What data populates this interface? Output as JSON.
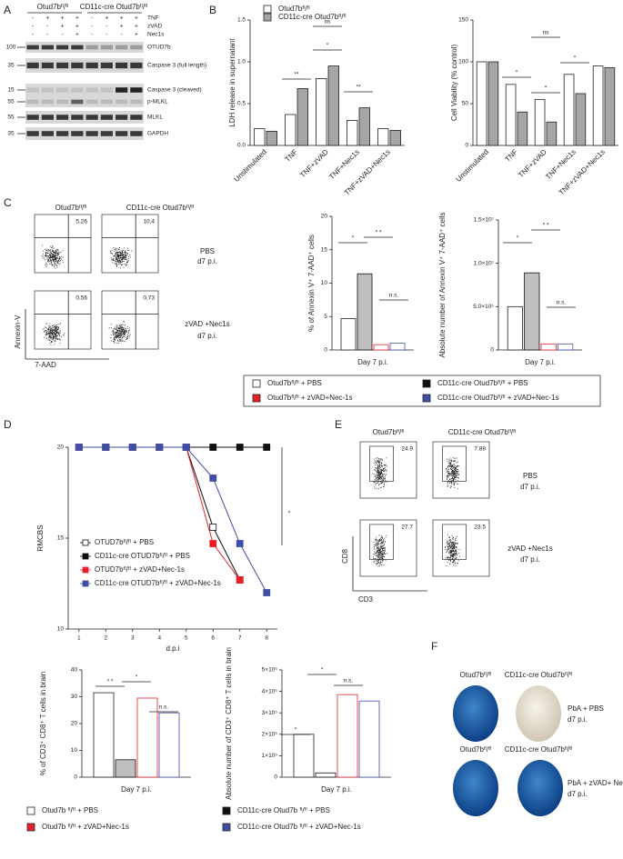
{
  "letters": [
    "A",
    "B",
    "C",
    "D",
    "E",
    "F"
  ],
  "blot": {
    "groups": [
      "Otud7bᶠˡ/ᶠˡ",
      "CD11c-cre Otud7bᶠˡ/ᶠˡ"
    ],
    "treatments": [
      {
        "name": "TNF",
        "signs": [
          "-",
          "+",
          "+",
          "+",
          "-",
          "+",
          "+",
          "+"
        ]
      },
      {
        "name": "zVAD",
        "signs": [
          "-",
          "-",
          "+",
          "+",
          "-",
          "-",
          "+",
          "+"
        ]
      },
      {
        "name": "Nec1s",
        "signs": [
          "-",
          "-",
          "-",
          "+",
          "-",
          "-",
          "-",
          "+"
        ]
      }
    ],
    "rows": [
      {
        "name": "OTUD7b",
        "mw": "100"
      },
      {
        "name": "Caspase 3 (full length)",
        "mw": "35"
      },
      {
        "name": "Caspase 3 (cleaved)",
        "mw": "15"
      },
      {
        "name": "p-MLKL",
        "mw": "55"
      },
      {
        "name": "MLKL",
        "mw": "55"
      },
      {
        "name": "GAPDH",
        "mw": "35"
      }
    ]
  },
  "flow_c": {
    "columns": [
      "Otud7bᶠˡ/ᶠˡ",
      "CD11c-cre Otud7bᶠˡ/ᶠˡ"
    ],
    "values": [
      "5,26",
      "10,4",
      "0,56",
      "0,73"
    ],
    "rows": [
      [
        "PBS",
        "d7 p.i."
      ],
      [
        "zVAD +Nec1s",
        "d7 p.i."
      ]
    ],
    "xlabel": "7-AAD",
    "ylabel": "Annexin-V"
  },
  "flow_e": {
    "columns": [
      "Otud7bᶠˡ/ᶠˡ",
      "CD11c-cre Otud7bᶠˡ/ᶠˡ"
    ],
    "values": [
      "24.9",
      "7.88",
      "27.7",
      "23.5"
    ],
    "rows": [
      [
        "PBS",
        "d7 p.i."
      ],
      [
        "zVAD +Nec1s",
        "d7 p.i."
      ]
    ],
    "xlabel": "CD3",
    "ylabel": "CD8"
  },
  "brains": {
    "columns": [
      "Otud7bᶠˡ/ᶠˡ",
      "CD11c-cre Otud7bᶠˡ/ᶠˡ",
      "Otud7bᶠˡ/ᶠˡ",
      "CD11c-cre Otud7bᶠˡ/ᶠˡ"
    ],
    "rows": [
      [
        "PbA + PBS",
        "d7 p.i."
      ],
      [
        "PbA + zVAD+ Nec1s",
        "d7 p.i."
      ]
    ]
  },
  "chart_data": [
    {
      "type": "bar",
      "ylabel": "LDH release in supernatant",
      "categories": [
        "Unstimulated",
        "TNF",
        "TNF+zVAD",
        "TNF+Nec1s",
        "TNF+zVAD+Nec1s"
      ],
      "series": [
        {
          "name": "Otud7bᶠˡ/ᶠˡ",
          "color": "#ffffff",
          "fill": "#ffffff",
          "values": [
            0.2,
            0.37,
            0.8,
            0.3,
            0.2
          ]
        },
        {
          "name": "CD11c-cre Otud7bᶠˡ/ᶠˡ",
          "color": "#a6a6a6",
          "fill": "#a6a6a6",
          "values": [
            0.17,
            0.68,
            0.95,
            0.45,
            0.18
          ]
        }
      ],
      "ylim": [
        0,
        1.5
      ],
      "yticks": [
        {
          "value": 0,
          "label": "0.0"
        },
        0.5,
        {
          "value": 1,
          "label": "1.0"
        },
        1.5
      ],
      "annotations": [
        "ns",
        "**",
        "*",
        "**"
      ]
    },
    {
      "type": "bar",
      "ylabel": "Cell Viability (% control)",
      "categories": [
        "Unstimulated",
        "TNF",
        "TNF+zVAD",
        "TNF+Nec1s",
        "TNF+zVAD+Nec1s"
      ],
      "series": [
        {
          "color": "#ffffff",
          "fill": "#ffffff",
          "values": [
            100,
            73,
            55,
            85,
            95
          ]
        },
        {
          "color": "#a6a6a6",
          "fill": "#a6a6a6",
          "values": [
            100,
            40,
            28,
            62,
            93
          ]
        }
      ],
      "ylim": [
        0,
        150
      ],
      "yticks": [
        0,
        50,
        100,
        150
      ],
      "annotations": [
        "ns",
        "*",
        "*",
        "*"
      ]
    },
    {
      "type": "bar",
      "ylabel": "% of Annexin V⁺ 7-AAD⁺ cells",
      "categories": [
        "Day 7 p.i."
      ],
      "series": [
        {
          "name": "Otud7bᶠˡ/ᶠˡ + PBS",
          "color": "#ffffff",
          "fill": "#ffffff",
          "values": [
            4.7
          ]
        },
        {
          "name": "CD11c-cre Otud7bᶠˡ/ᶠˡ + PBS",
          "color": "#111111",
          "fill": "#bfbfbf",
          "values": [
            11.4
          ]
        },
        {
          "name": "Otud7bᶠˡ/ᶠˡ + zVAD+Nec-1s",
          "color": "#e8202a",
          "fill": "#ffffff",
          "values": [
            0.8
          ]
        },
        {
          "name": "CD11c-cre Otud7bᶠˡ/ᶠˡ + zVAD+Nec-1s",
          "color": "#3f4fa8",
          "fill": "#ffffff",
          "values": [
            1.0
          ]
        }
      ],
      "ylim": [
        0,
        20
      ],
      "yticks": [
        0,
        5,
        10,
        15,
        20
      ],
      "annotations": [
        "*",
        "* *",
        "n.s."
      ]
    },
    {
      "type": "bar",
      "ylabel": "Absolute number of Annexin V⁺ 7-AAD⁺ cells",
      "categories": [
        "Day 7 p.i."
      ],
      "series": [
        {
          "color": "#ffffff",
          "fill": "#ffffff",
          "values": [
            5000000
          ]
        },
        {
          "color": "#111111",
          "fill": "#bfbfbf",
          "values": [
            8900000
          ]
        },
        {
          "color": "#e8202a",
          "fill": "#ffffff",
          "values": [
            700000
          ]
        },
        {
          "color": "#3f4fa8",
          "fill": "#ffffff",
          "values": [
            700000
          ]
        }
      ],
      "ylim": [
        0,
        15000000
      ],
      "yticks": [
        0,
        {
          "value": 5000000,
          "label": "5.0×10⁶"
        },
        {
          "value": 10000000,
          "label": "1.0×10⁷"
        },
        {
          "value": 15000000,
          "label": "1.5×10⁷"
        }
      ],
      "annotations": [
        "*",
        "* *",
        "n.s."
      ]
    },
    {
      "type": "line",
      "ylabel": "RMCBS",
      "xlabel": "d.p.i",
      "x": [
        1,
        2,
        3,
        4,
        5,
        6,
        7,
        8
      ],
      "series": [
        {
          "name": "OTUD7bᶠˡ/ᶠˡ + PBS",
          "color": "#ffffff",
          "line": "#111111",
          "values": [
            20,
            20,
            20,
            20,
            20,
            15.6,
            12.7,
            null
          ]
        },
        {
          "name": "CD11c-cre OTUD7bᶠˡ/ᶠˡ + PBS",
          "color": "#111111",
          "line": "#111111",
          "values": [
            20,
            20,
            20,
            20,
            20,
            20,
            20,
            20
          ]
        },
        {
          "name": "OTUD7bᶠˡ/ᶠˡ + zVAD+Nec-1s",
          "color": "#e8202a",
          "line": "#e8202a",
          "values": [
            20,
            20,
            20,
            20,
            20,
            14.7,
            12.7,
            null
          ]
        },
        {
          "name": "CD11c-cre OTUD7bᶠˡ/ᶠˡ + zVAD+Nec-1s",
          "color": "#3f4fa8",
          "line": "#3f4fa8",
          "values": [
            20,
            20,
            20,
            20,
            20,
            18.3,
            14.7,
            12
          ]
        }
      ],
      "xlim": [
        0.6,
        8.4
      ],
      "xticks": [
        1,
        2,
        3,
        4,
        5,
        6,
        7,
        8
      ],
      "ylim": [
        10,
        20
      ],
      "yticks": [
        10,
        15,
        20
      ],
      "annotations": [
        "*"
      ]
    },
    {
      "type": "bar",
      "ylabel": "% of CD3⁺ CD8⁺ T cells in brain",
      "categories": [
        "Day 7 p.i."
      ],
      "series": [
        {
          "name": "Otud7b ᶠˡ/ᶠˡ + PBS",
          "color": "#ffffff",
          "fill": "#ffffff",
          "values": [
            31.5
          ]
        },
        {
          "name": "CD11c-cre Otud7b ᶠˡ/ᶠˡ + PBS",
          "color": "#111111",
          "fill": "#bfbfbf",
          "values": [
            6.5
          ]
        },
        {
          "name": "Otud7b ᶠˡ/ᶠˡ + zVAD+Nec-1s",
          "color": "#e8202a",
          "fill": "#ffffff",
          "values": [
            29.5
          ]
        },
        {
          "name": "CD11c-cre Otud7b ᶠˡ/ᶠˡ + zVAD+Nec-1s",
          "color": "#3f4fa8",
          "fill": "#ffffff",
          "values": [
            24
          ]
        }
      ],
      "ylim": [
        0,
        40
      ],
      "yticks": [
        0,
        10,
        20,
        30,
        40
      ],
      "annotations": [
        "* *",
        "*",
        "n.s."
      ]
    },
    {
      "type": "bar",
      "ylabel": "Absolute number of CD3⁺ CD8⁺ T cells in brain",
      "categories": [
        "Day 7 p.i."
      ],
      "series": [
        {
          "color": "#ffffff",
          "fill": "#ffffff",
          "values": [
            200000
          ]
        },
        {
          "color": "#111111",
          "fill": "#ffffff",
          "values": [
            20000
          ]
        },
        {
          "color": "#e8202a",
          "fill": "#ffffff",
          "values": [
            385000
          ]
        },
        {
          "color": "#3f4fa8",
          "fill": "#ffffff",
          "values": [
            355000
          ]
        }
      ],
      "ylim": [
        0,
        500000
      ],
      "yticks": [
        0,
        {
          "value": 100000,
          "label": "1×10⁵"
        },
        {
          "value": 200000,
          "label": "2×10⁵"
        },
        {
          "value": 300000,
          "label": "3×10⁵"
        },
        {
          "value": 400000,
          "label": "4×10⁵"
        },
        {
          "value": 500000,
          "label": "5×10⁵"
        }
      ],
      "annotations": [
        "*",
        "*",
        "n.s."
      ]
    }
  ]
}
